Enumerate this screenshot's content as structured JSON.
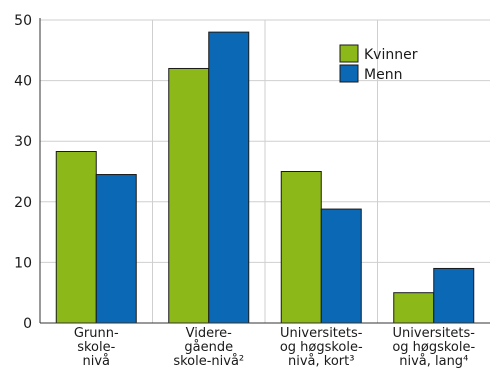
{
  "chart_data": {
    "type": "bar",
    "title": "",
    "xlabel": "",
    "ylabel": "",
    "ylim": [
      0,
      50
    ],
    "yticks": [
      0,
      10,
      20,
      30,
      40,
      50
    ],
    "grid": true,
    "legend_position": "top-right",
    "categories": [
      {
        "id": "grunn",
        "lines": [
          "Grunn-",
          "skole-",
          "nivå"
        ]
      },
      {
        "id": "videre",
        "lines": [
          "Videre-",
          "gående",
          "skole-nivå²"
        ]
      },
      {
        "id": "uni-kort",
        "lines": [
          "Universitets-",
          "og høgskole-",
          "nivå, kort³"
        ]
      },
      {
        "id": "uni-lang",
        "lines": [
          "Universitets-",
          "og høgskole-",
          "nivå, lang⁴"
        ]
      }
    ],
    "series": [
      {
        "name": "Kvinner",
        "color": "#8db81a",
        "values": [
          28.3,
          42.0,
          25.0,
          5.0
        ]
      },
      {
        "name": "Menn",
        "color": "#0a68b4",
        "values": [
          24.5,
          48.0,
          18.8,
          9.0
        ]
      }
    ]
  }
}
